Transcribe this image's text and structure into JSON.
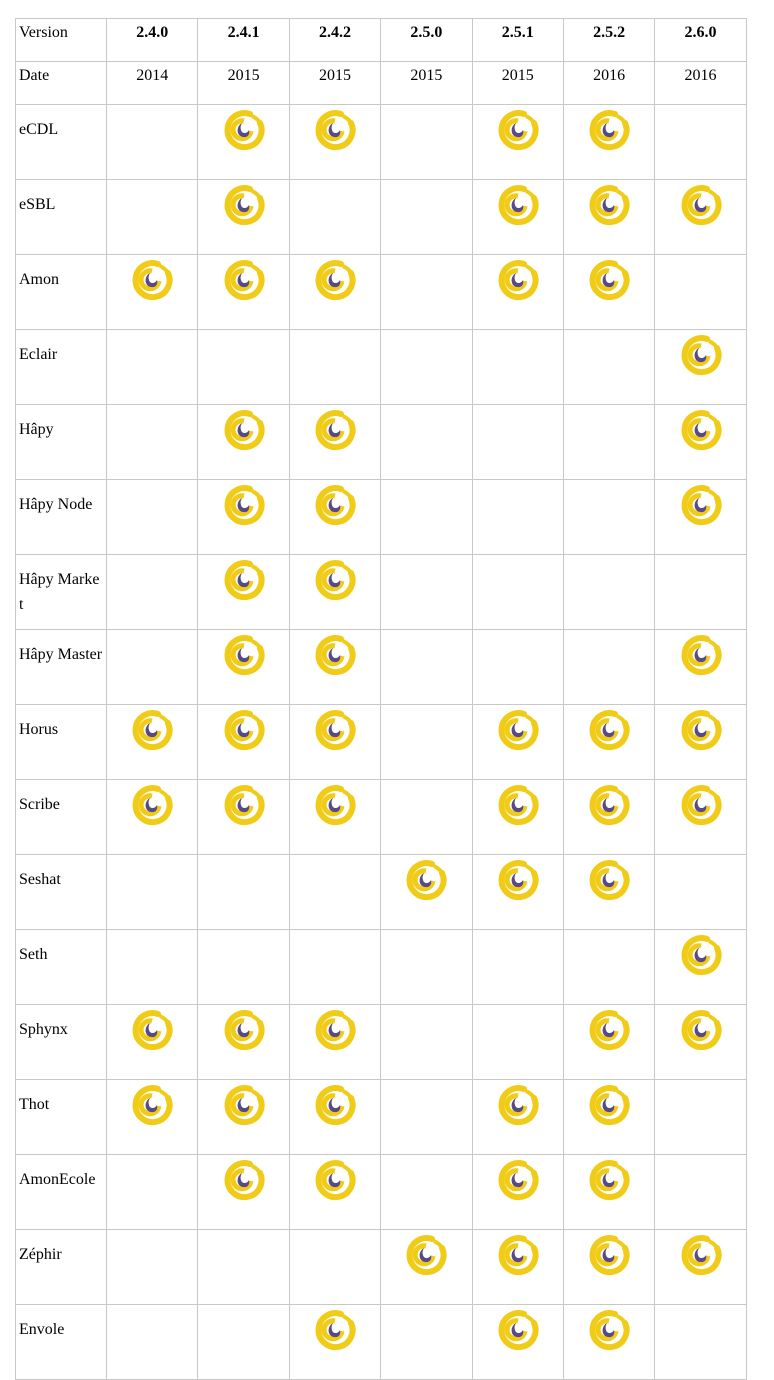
{
  "header": {
    "version_label": "Version",
    "date_label": "Date",
    "versions": [
      "2.4.0",
      "2.4.1",
      "2.4.2",
      "2.5.0",
      "2.5.1",
      "2.5.2",
      "2.6.0"
    ],
    "dates": [
      "2014",
      "2015",
      "2015",
      "2015",
      "2015",
      "2016",
      "2016"
    ]
  },
  "logo_icon": "eole-spiral-logo",
  "colors": {
    "logo_outer": "#f0cc18",
    "logo_inner": "#574a86",
    "border": "#c8c8c8"
  },
  "rows": [
    {
      "name": "eCDL",
      "supported": [
        false,
        true,
        true,
        false,
        true,
        true,
        false
      ]
    },
    {
      "name": "eSBL",
      "supported": [
        false,
        true,
        false,
        false,
        true,
        true,
        true
      ]
    },
    {
      "name": "Amon",
      "supported": [
        true,
        true,
        true,
        false,
        true,
        true,
        false
      ]
    },
    {
      "name": "Eclair",
      "supported": [
        false,
        false,
        false,
        false,
        false,
        false,
        true
      ]
    },
    {
      "name": "Hâpy",
      "supported": [
        false,
        true,
        true,
        false,
        false,
        false,
        true
      ]
    },
    {
      "name": "Hâpy Node",
      "supported": [
        false,
        true,
        true,
        false,
        false,
        false,
        true
      ]
    },
    {
      "name": "Hâpy Market",
      "supported": [
        false,
        true,
        true,
        false,
        false,
        false,
        false
      ]
    },
    {
      "name": "Hâpy Master",
      "supported": [
        false,
        true,
        true,
        false,
        false,
        false,
        true
      ]
    },
    {
      "name": "Horus",
      "supported": [
        true,
        true,
        true,
        false,
        true,
        true,
        true
      ]
    },
    {
      "name": "Scribe",
      "supported": [
        true,
        true,
        true,
        false,
        true,
        true,
        true
      ]
    },
    {
      "name": "Seshat",
      "supported": [
        false,
        false,
        false,
        true,
        true,
        true,
        false
      ]
    },
    {
      "name": "Seth",
      "supported": [
        false,
        false,
        false,
        false,
        false,
        false,
        true
      ]
    },
    {
      "name": "Sphynx",
      "supported": [
        true,
        true,
        true,
        false,
        false,
        true,
        true
      ]
    },
    {
      "name": "Thot",
      "supported": [
        true,
        true,
        true,
        false,
        true,
        true,
        false
      ]
    },
    {
      "name": "AmonEcole",
      "supported": [
        false,
        true,
        true,
        false,
        true,
        true,
        false
      ]
    },
    {
      "name": "Zéphir",
      "supported": [
        false,
        false,
        false,
        true,
        true,
        true,
        true
      ]
    },
    {
      "name": "Envole",
      "supported": [
        false,
        false,
        true,
        false,
        true,
        true,
        false
      ]
    }
  ]
}
